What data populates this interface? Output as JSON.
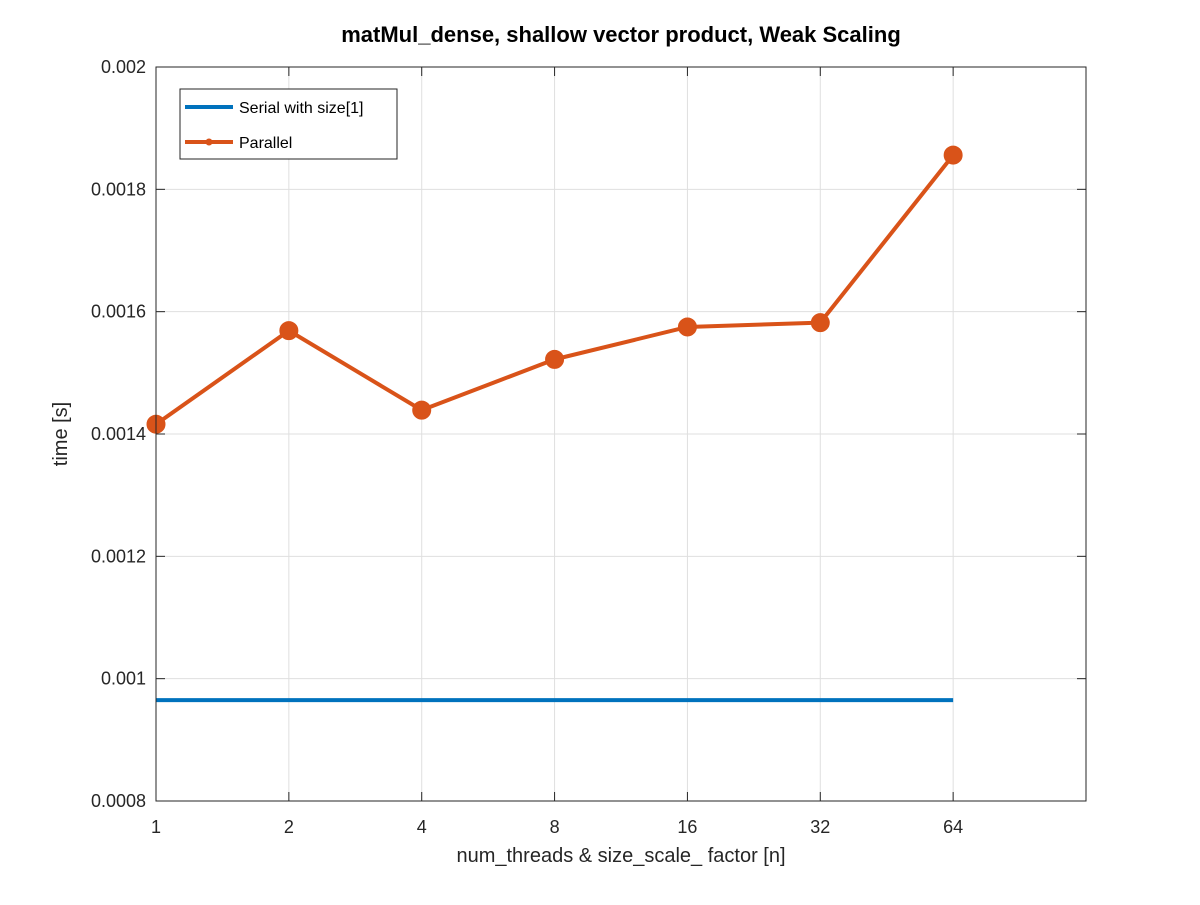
{
  "chart_data": {
    "type": "line",
    "title": "matMul_dense, shallow vector product, Weak Scaling",
    "xlabel": "num_threads & size_scale_ factor [n]",
    "ylabel": "time [s]",
    "x_scale": "log2",
    "x": [
      1,
      2,
      4,
      8,
      16,
      32,
      64
    ],
    "x_tick_labels": [
      "1",
      "2",
      "4",
      "8",
      "16",
      "32",
      "64"
    ],
    "xlim": [
      1,
      128
    ],
    "ylim": [
      0.0008,
      0.002
    ],
    "y_ticks": [
      0.0008,
      0.001,
      0.0012,
      0.0014,
      0.0016,
      0.0018,
      0.002
    ],
    "y_tick_labels": [
      "0.0008",
      "0.001",
      "0.0012",
      "0.0014",
      "0.0016",
      "0.0018",
      "0.002"
    ],
    "grid": true,
    "legend_position": "top-left",
    "series": [
      {
        "name": "Serial with size[1]",
        "color": "#0072bd",
        "marker": "none",
        "values": [
          0.000965,
          0.000965,
          0.000965,
          0.000965,
          0.000965,
          0.000965,
          0.000965
        ]
      },
      {
        "name": "Parallel",
        "color": "#d95319",
        "marker": "circle",
        "values": [
          0.001416,
          0.001569,
          0.001439,
          0.001522,
          0.001575,
          0.001582,
          0.001856
        ]
      }
    ]
  }
}
